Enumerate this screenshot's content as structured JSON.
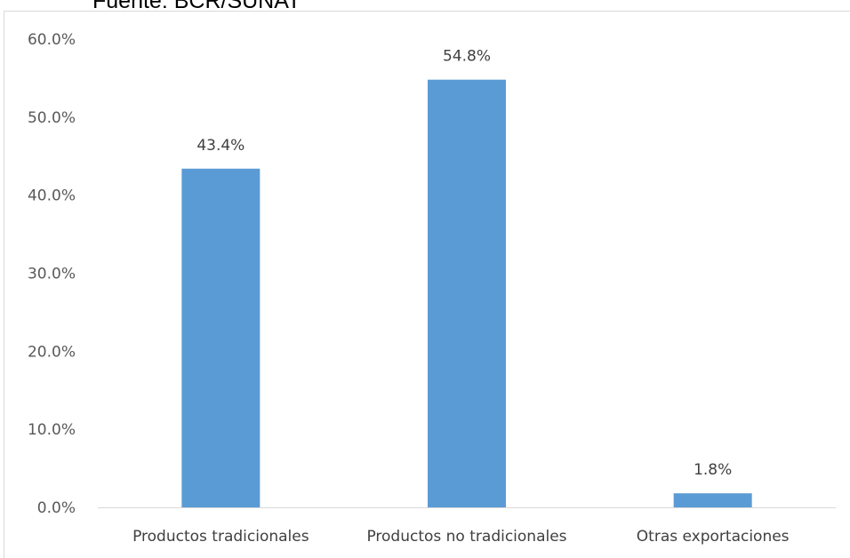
{
  "caption": "Fuente: BCR/SUNAT",
  "chart_data": {
    "type": "bar",
    "categories": [
      "Productos tradicionales",
      "Productos no tradicionales",
      "Otras exportaciones"
    ],
    "values": [
      43.4,
      54.8,
      1.8
    ],
    "data_labels": [
      "43.4%",
      "54.8%",
      "1.8%"
    ],
    "y_ticks": [
      "0.0%",
      "10.0%",
      "20.0%",
      "30.0%",
      "40.0%",
      "50.0%",
      "60.0%"
    ],
    "ylim": [
      0,
      60
    ],
    "grid": false,
    "bar_color": "#5b9bd5",
    "axis_color": "#d9d9d9"
  }
}
